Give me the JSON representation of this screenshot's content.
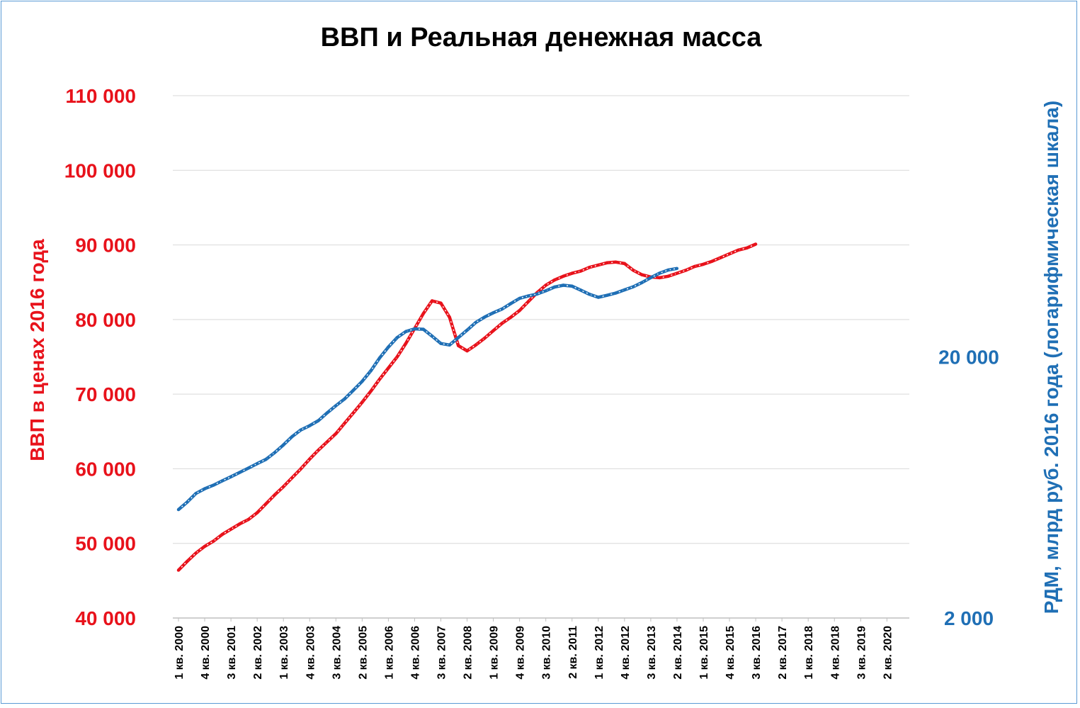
{
  "chart_data": {
    "type": "line",
    "title": "ВВП и Реальная денежная масса",
    "ylabel_left": "ВВП в ценах 2016 года",
    "ylabel_right": "РДМ, млрд руб. 2016 года (логарифмическая шкала)",
    "ylim_left": [
      40000,
      110000
    ],
    "yticks_left": [
      "40 000",
      "50 000",
      "60 000",
      "70 000",
      "80 000",
      "90 000",
      "100 000",
      "110 000"
    ],
    "ytick_values_left": [
      40000,
      50000,
      60000,
      70000,
      80000,
      90000,
      100000,
      110000
    ],
    "ylim_right": [
      2000,
      200000
    ],
    "yscale_right": "log",
    "yticks_right": [
      "2 000",
      "20 000"
    ],
    "ytick_values_right": [
      2000,
      20000
    ],
    "x_tick_labels": [
      "1 кв. 2000",
      "4 кв. 2000",
      "3 кв. 2001",
      "2 кв. 2002",
      "1 кв. 2003",
      "4 кв. 2003",
      "3 кв. 2004",
      "2 кв. 2005",
      "1 кв. 2006",
      "4 кв. 2006",
      "3 кв. 2007",
      "2 кв. 2008",
      "1 кв. 2009",
      "4 кв. 2009",
      "3 кв. 2010",
      "2 кв. 2011",
      "1 кв. 2012",
      "4 кв. 2012",
      "3 кв. 2013",
      "2 кв. 2014",
      "1 кв. 2015",
      "4 кв. 2015",
      "3 кв. 2016",
      "2 кв. 2017",
      "1 кв. 2018",
      "4 кв. 2018",
      "3 кв. 2019",
      "2 кв. 2020"
    ],
    "grid": true,
    "series": [
      {
        "key": "gdp",
        "axis": "left",
        "color": "#e8121b",
        "values": [
          46400,
          47600,
          48700,
          49600,
          50300,
          51200,
          51900,
          52600,
          53200,
          54100,
          55300,
          56500,
          57600,
          58800,
          60000,
          61300,
          62500,
          63600,
          64700,
          66100,
          67500,
          68900,
          70400,
          72000,
          73500,
          75000,
          76800,
          78800,
          80800,
          82500,
          82200,
          80300,
          76500,
          75800,
          76600,
          77500,
          78500,
          79500,
          80300,
          81200,
          82400,
          83600,
          84600,
          85300,
          85800,
          86200,
          86500,
          87000,
          87300,
          87600,
          87700,
          87500,
          86600,
          86000,
          85700,
          85600,
          85800,
          86200,
          86600,
          87100,
          87400,
          87800,
          88300,
          88800,
          89300,
          89600,
          90100
        ]
      },
      {
        "key": "rdm",
        "axis": "right",
        "color": "#1f6fb5",
        "values": [
          5200,
          5560,
          6000,
          6250,
          6450,
          6700,
          6950,
          7220,
          7500,
          7800,
          8100,
          8600,
          9200,
          9900,
          10500,
          10900,
          11400,
          12200,
          13000,
          13800,
          14900,
          16100,
          17700,
          19800,
          21800,
          23700,
          25000,
          25600,
          25500,
          24000,
          22500,
          22200,
          23700,
          25300,
          27100,
          28400,
          29500,
          30500,
          32000,
          33500,
          34200,
          34800,
          35800,
          37000,
          37600,
          37300,
          36000,
          34700,
          33800,
          34400,
          35100,
          36100,
          37100,
          38500,
          40200,
          41800,
          43000,
          43600
        ]
      }
    ]
  }
}
